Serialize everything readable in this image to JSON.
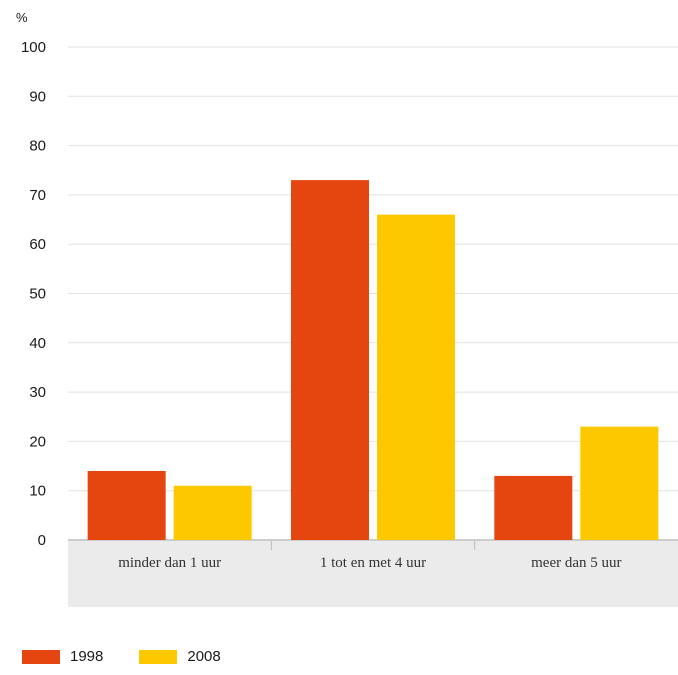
{
  "chart_data": {
    "type": "bar",
    "unit_label": "%",
    "categories": [
      "minder dan 1 uur",
      "1 tot en met 4 uur",
      "meer dan 5 uur"
    ],
    "series": [
      {
        "name": "1998",
        "values": [
          14,
          73,
          13
        ],
        "color": "#e5450f"
      },
      {
        "name": "2008",
        "values": [
          11,
          66,
          23
        ],
        "color": "#fcc800"
      }
    ],
    "yticks": [
      0,
      10,
      20,
      30,
      40,
      50,
      60,
      70,
      80,
      90,
      100
    ],
    "ylim": [
      0,
      100
    ],
    "grid": true,
    "legend_position": "bottom-left"
  }
}
